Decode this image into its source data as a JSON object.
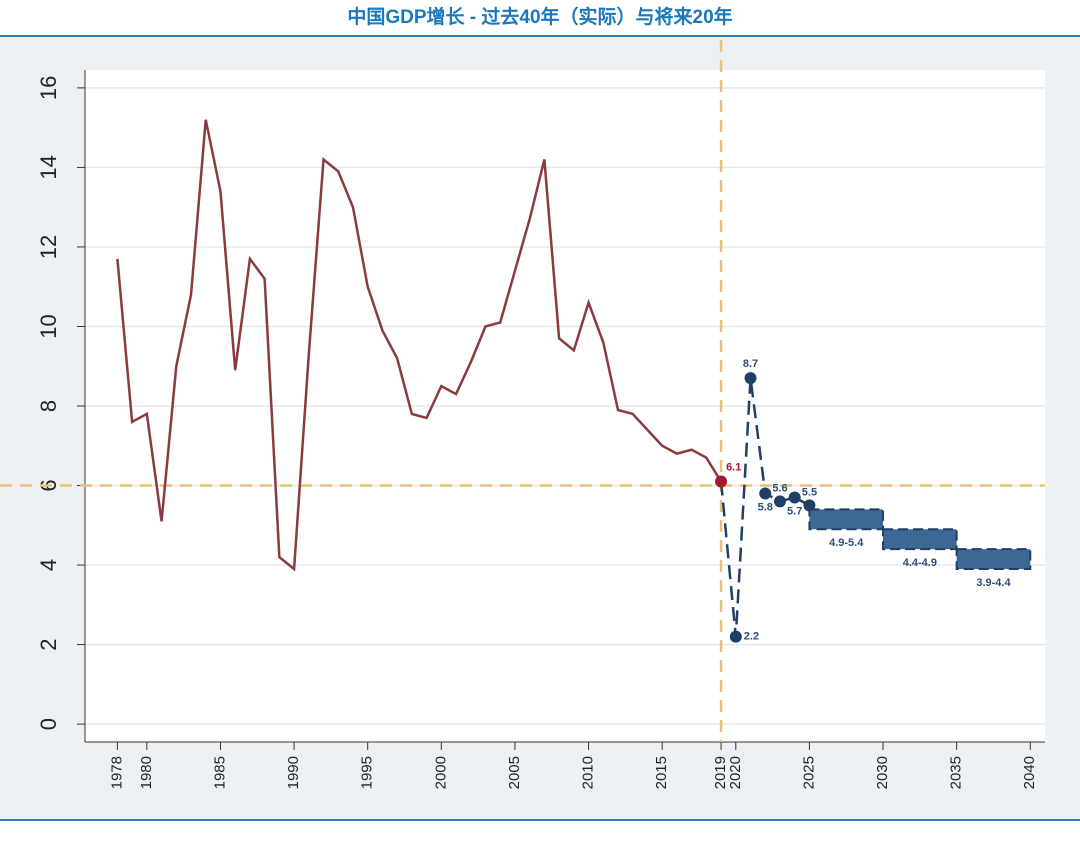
{
  "chart_data": {
    "type": "line",
    "title": "中国GDP增长 - 过去40年（实际）与将来20年",
    "xlim": [
      1975.8,
      2041
    ],
    "ylim": [
      -0.45,
      16.45
    ],
    "xticks": [
      1978,
      1980,
      1985,
      1990,
      1995,
      2000,
      2005,
      2010,
      2015,
      2019,
      2020,
      2025,
      2030,
      2035,
      2040
    ],
    "yticks": [
      0,
      2,
      4,
      6,
      8,
      10,
      12,
      14,
      16
    ],
    "grid": true,
    "vline": 2019,
    "hline": 6,
    "ref_color": "#e6c27a",
    "series": [
      {
        "color": "#8b3a40",
        "marker_color": "#a3192a",
        "x": [
          1978,
          1979,
          1980,
          1981,
          1982,
          1983,
          1984,
          1985,
          1986,
          1987,
          1988,
          1989,
          1990,
          1991,
          1992,
          1993,
          1994,
          1995,
          1996,
          1997,
          1998,
          1999,
          2000,
          2001,
          2002,
          2003,
          2004,
          2005,
          2006,
          2007,
          2008,
          2009,
          2010,
          2011,
          2012,
          2013,
          2014,
          2015,
          2016,
          2017,
          2018,
          2019
        ],
        "values": [
          11.7,
          7.6,
          7.8,
          5.1,
          9.0,
          10.8,
          15.2,
          13.4,
          8.9,
          11.7,
          11.2,
          4.2,
          3.9,
          9.3,
          14.2,
          13.9,
          13.0,
          11.0,
          9.9,
          9.2,
          7.8,
          7.7,
          8.5,
          8.3,
          9.1,
          10.0,
          10.1,
          11.4,
          12.7,
          14.2,
          9.7,
          9.4,
          10.6,
          9.6,
          7.9,
          7.8,
          7.4,
          7.0,
          6.8,
          6.9,
          6.7,
          6.1
        ]
      },
      {
        "color": "#1f3f66",
        "dashed": true,
        "x": [
          2019,
          2020,
          2021,
          2022,
          2023,
          2024,
          2025
        ],
        "values": [
          6.1,
          2.2,
          8.7,
          5.8,
          5.6,
          5.7,
          5.5
        ]
      }
    ],
    "bands": [
      {
        "x": [
          2025,
          2030
        ],
        "low": 4.9,
        "high": 5.4,
        "label": "4.9-5.4"
      },
      {
        "x": [
          2030,
          2035
        ],
        "low": 4.4,
        "high": 4.9,
        "label": "4.4-4.9"
      },
      {
        "x": [
          2035,
          2040
        ],
        "low": 3.9,
        "high": 4.4,
        "label": "3.9-4.4"
      }
    ],
    "band_color": "#3d6794"
  }
}
